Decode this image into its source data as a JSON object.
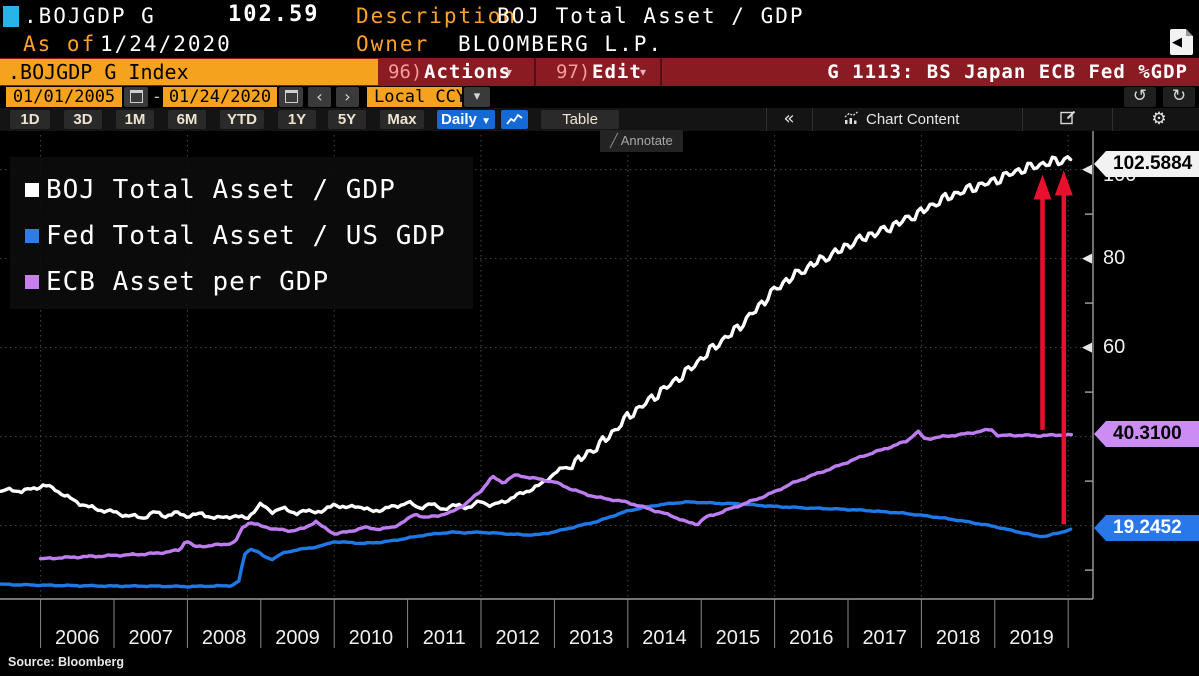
{
  "header": {
    "ticker": ".BOJGDP G",
    "last_price": "102.59",
    "description_label": "Description",
    "description_value": "BOJ Total Asset / GDP",
    "as_of_label": "As of",
    "as_of_date": "1/24/2020",
    "owner_label": "Owner",
    "owner_value": "BLOOMBERG L.P."
  },
  "command_bar": {
    "security_field": ".BOJGDP G Index",
    "actions_num": "96)",
    "actions_label": "Actions",
    "edit_num": "97)",
    "edit_label": "Edit",
    "dropdown_caret": "▾",
    "chart_title": "G 1113: BS Japan ECB Fed %GDP"
  },
  "date_bar": {
    "start_date": "01/01/2005",
    "end_date": "01/24/2020",
    "range_separator": "-",
    "currency": "Local CCY",
    "prev_label": "‹",
    "next_label": "›",
    "undo_label": "↺",
    "redo_label": "↻"
  },
  "toolbar": {
    "ranges": [
      "1D",
      "3D",
      "1M",
      "6M",
      "YTD",
      "1Y",
      "5Y",
      "Max"
    ],
    "frequency": "Daily",
    "frequency_caret": "▼",
    "table_label": "Table",
    "collapse_label": "«",
    "chart_content_label": "Chart Content",
    "gear_icon": "⚙",
    "annotate_label": "Annotate",
    "annotate_glyph": "╱"
  },
  "legend": {
    "items": [
      {
        "label": "BOJ Total Asset / GDP",
        "color": "#ffffff"
      },
      {
        "label": "Fed Total Asset / US GDP",
        "color": "#2e7ce4"
      },
      {
        "label": "ECB Asset per GDP",
        "color": "#c77ff0"
      }
    ]
  },
  "badges": [
    {
      "id": "boj",
      "value": "102.5884"
    },
    {
      "id": "ecb",
      "value": "40.3100"
    },
    {
      "id": "fed",
      "value": "19.2452"
    }
  ],
  "source": "Source: Bloomberg",
  "chart_data": {
    "type": "line",
    "title": "G 1113: BS Japan ECB Fed %GDP",
    "x_axis": {
      "start": 2005.45,
      "end": 2020.45,
      "year_labels": [
        2006,
        2007,
        2008,
        2009,
        2010,
        2011,
        2012,
        2013,
        2014,
        2015,
        2016,
        2017,
        2018,
        2019
      ],
      "tick_years": [
        2006,
        2007,
        2008,
        2009,
        2010,
        2011,
        2012,
        2013,
        2014,
        2015,
        2016,
        2017,
        2018,
        2019,
        2020
      ],
      "gridline_years": [
        2006,
        2008,
        2010,
        2012,
        2014,
        2016,
        2018,
        2020
      ]
    },
    "y_axis": {
      "unit": "% of GDP",
      "major": [
        20,
        40,
        60,
        80,
        100
      ],
      "labeled": [
        60,
        80,
        100
      ],
      "minor": [
        10,
        30,
        50,
        70,
        90
      ],
      "range": [
        3,
        106
      ]
    },
    "grid": true,
    "legend_position": "top-left",
    "series": [
      {
        "name": "Fed Total Asset / US GDP",
        "color": "#1e78e6",
        "last_value": 19.2452,
        "points": [
          [
            2005.45,
            6.8
          ],
          [
            2006.0,
            6.6
          ],
          [
            2006.5,
            6.5
          ],
          [
            2007.0,
            6.4
          ],
          [
            2007.5,
            6.4
          ],
          [
            2008.0,
            6.3
          ],
          [
            2008.3,
            6.4
          ],
          [
            2008.6,
            6.5
          ],
          [
            2008.7,
            7.5
          ],
          [
            2008.78,
            13.5
          ],
          [
            2008.85,
            14.8
          ],
          [
            2008.95,
            14.2
          ],
          [
            2009.05,
            13.0
          ],
          [
            2009.15,
            12.4
          ],
          [
            2009.3,
            13.8
          ],
          [
            2009.5,
            14.6
          ],
          [
            2009.7,
            15.0
          ],
          [
            2009.9,
            15.8
          ],
          [
            2010.0,
            16.4
          ],
          [
            2010.2,
            16.2
          ],
          [
            2010.4,
            16.0
          ],
          [
            2010.6,
            16.2
          ],
          [
            2010.8,
            16.6
          ],
          [
            2011.0,
            17.2
          ],
          [
            2011.2,
            17.8
          ],
          [
            2011.4,
            18.2
          ],
          [
            2011.6,
            18.5
          ],
          [
            2011.8,
            18.4
          ],
          [
            2012.0,
            18.5
          ],
          [
            2012.2,
            18.3
          ],
          [
            2012.4,
            18.1
          ],
          [
            2012.6,
            17.9
          ],
          [
            2012.8,
            18.0
          ],
          [
            2013.0,
            18.6
          ],
          [
            2013.2,
            19.4
          ],
          [
            2013.4,
            20.2
          ],
          [
            2013.6,
            21.0
          ],
          [
            2013.8,
            22.2
          ],
          [
            2014.0,
            23.3
          ],
          [
            2014.2,
            24.0
          ],
          [
            2014.4,
            24.6
          ],
          [
            2014.6,
            25.0
          ],
          [
            2014.8,
            25.3
          ],
          [
            2015.0,
            25.2
          ],
          [
            2015.25,
            25.0
          ],
          [
            2015.5,
            24.9
          ],
          [
            2015.75,
            24.6
          ],
          [
            2016.0,
            24.3
          ],
          [
            2016.25,
            24.1
          ],
          [
            2016.5,
            23.9
          ],
          [
            2016.75,
            23.8
          ],
          [
            2017.0,
            23.6
          ],
          [
            2017.25,
            23.4
          ],
          [
            2017.5,
            23.1
          ],
          [
            2017.75,
            22.8
          ],
          [
            2018.0,
            22.3
          ],
          [
            2018.25,
            21.8
          ],
          [
            2018.5,
            21.2
          ],
          [
            2018.75,
            20.5
          ],
          [
            2019.0,
            19.8
          ],
          [
            2019.2,
            19.0
          ],
          [
            2019.4,
            18.3
          ],
          [
            2019.55,
            17.7
          ],
          [
            2019.7,
            17.6
          ],
          [
            2019.85,
            18.3
          ],
          [
            2020.07,
            19.2452
          ]
        ]
      },
      {
        "name": "BOJ Total Asset / GDP",
        "color": "#ffffff",
        "last_value": 102.5884,
        "points": [
          [
            2005.45,
            27.5
          ],
          [
            2005.6,
            28.2
          ],
          [
            2005.75,
            27.6
          ],
          [
            2005.9,
            28.4
          ],
          [
            2006.05,
            29.0
          ],
          [
            2006.2,
            28.2
          ],
          [
            2006.35,
            26.5
          ],
          [
            2006.5,
            25.3
          ],
          [
            2006.65,
            24.2
          ],
          [
            2006.8,
            23.6
          ],
          [
            2007.0,
            23.0
          ],
          [
            2007.2,
            22.2
          ],
          [
            2007.4,
            21.8
          ],
          [
            2007.55,
            23.0
          ],
          [
            2007.7,
            22.2
          ],
          [
            2007.85,
            22.8
          ],
          [
            2008.0,
            22.2
          ],
          [
            2008.2,
            22.6
          ],
          [
            2008.4,
            21.6
          ],
          [
            2008.6,
            22.2
          ],
          [
            2008.8,
            21.6
          ],
          [
            2009.0,
            24.7
          ],
          [
            2009.15,
            23.2
          ],
          [
            2009.3,
            23.8
          ],
          [
            2009.5,
            22.8
          ],
          [
            2009.7,
            23.4
          ],
          [
            2009.85,
            23.0
          ],
          [
            2010.0,
            25.0
          ],
          [
            2010.15,
            23.8
          ],
          [
            2010.3,
            24.6
          ],
          [
            2010.5,
            23.2
          ],
          [
            2010.7,
            23.8
          ],
          [
            2010.85,
            24.4
          ],
          [
            2011.0,
            25.2
          ],
          [
            2011.15,
            24.0
          ],
          [
            2011.3,
            24.8
          ],
          [
            2011.5,
            23.8
          ],
          [
            2011.7,
            24.6
          ],
          [
            2011.85,
            24.0
          ],
          [
            2012.0,
            25.6
          ],
          [
            2012.15,
            24.4
          ],
          [
            2012.3,
            25.4
          ],
          [
            2012.45,
            26.4
          ],
          [
            2012.6,
            27.6
          ],
          [
            2012.8,
            29.0
          ],
          [
            2013.0,
            31.8
          ],
          [
            2013.2,
            33.5
          ],
          [
            2013.4,
            35.5
          ],
          [
            2013.6,
            38.0
          ],
          [
            2013.8,
            41.0
          ],
          [
            2014.0,
            44.5
          ],
          [
            2014.2,
            47.0
          ],
          [
            2014.4,
            49.5
          ],
          [
            2014.6,
            52.0
          ],
          [
            2014.8,
            54.5
          ],
          [
            2015.0,
            57.5
          ],
          [
            2015.2,
            60.5
          ],
          [
            2015.4,
            63.0
          ],
          [
            2015.6,
            66.0
          ],
          [
            2015.8,
            69.5
          ],
          [
            2016.0,
            73.0
          ],
          [
            2016.2,
            75.5
          ],
          [
            2016.4,
            77.5
          ],
          [
            2016.6,
            79.5
          ],
          [
            2016.8,
            81.0
          ],
          [
            2017.0,
            83.0
          ],
          [
            2017.25,
            85.0
          ],
          [
            2017.5,
            86.5
          ],
          [
            2017.75,
            88.5
          ],
          [
            2018.0,
            90.5
          ],
          [
            2018.25,
            93.0
          ],
          [
            2018.5,
            94.8
          ],
          [
            2018.75,
            96.2
          ],
          [
            2019.0,
            97.5
          ],
          [
            2019.2,
            99.0
          ],
          [
            2019.4,
            100.2
          ],
          [
            2019.6,
            101.0
          ],
          [
            2019.8,
            101.8
          ],
          [
            2019.95,
            102.2
          ],
          [
            2020.07,
            102.59
          ]
        ]
      },
      {
        "name": "ECB Asset per GDP",
        "color": "#bd7df0",
        "last_value": 40.31,
        "points": [
          [
            2006.0,
            12.5
          ],
          [
            2006.3,
            12.8
          ],
          [
            2006.6,
            13.0
          ],
          [
            2006.9,
            13.2
          ],
          [
            2007.0,
            13.3
          ],
          [
            2007.3,
            13.5
          ],
          [
            2007.6,
            13.8
          ],
          [
            2007.9,
            14.5
          ],
          [
            2007.98,
            16.8
          ],
          [
            2008.1,
            15.2
          ],
          [
            2008.3,
            15.5
          ],
          [
            2008.5,
            15.8
          ],
          [
            2008.65,
            16.2
          ],
          [
            2008.75,
            19.5
          ],
          [
            2008.85,
            20.8
          ],
          [
            2009.0,
            19.9
          ],
          [
            2009.2,
            19.2
          ],
          [
            2009.4,
            18.8
          ],
          [
            2009.6,
            19.4
          ],
          [
            2009.75,
            21.0
          ],
          [
            2009.85,
            19.6
          ],
          [
            2010.0,
            18.2
          ],
          [
            2010.2,
            18.6
          ],
          [
            2010.4,
            19.6
          ],
          [
            2010.6,
            19.2
          ],
          [
            2010.8,
            19.6
          ],
          [
            2011.0,
            21.4
          ],
          [
            2011.1,
            22.6
          ],
          [
            2011.25,
            21.8
          ],
          [
            2011.4,
            22.2
          ],
          [
            2011.6,
            23.0
          ],
          [
            2011.8,
            25.0
          ],
          [
            2012.0,
            27.8
          ],
          [
            2012.15,
            31.0
          ],
          [
            2012.3,
            29.6
          ],
          [
            2012.45,
            31.3
          ],
          [
            2012.6,
            31.0
          ],
          [
            2012.8,
            30.4
          ],
          [
            2013.0,
            29.8
          ],
          [
            2013.2,
            28.4
          ],
          [
            2013.4,
            27.2
          ],
          [
            2013.6,
            26.3
          ],
          [
            2013.8,
            25.8
          ],
          [
            2014.0,
            25.2
          ],
          [
            2014.2,
            24.2
          ],
          [
            2014.4,
            23.2
          ],
          [
            2014.6,
            22.2
          ],
          [
            2014.8,
            20.8
          ],
          [
            2014.95,
            20.3
          ],
          [
            2015.05,
            21.8
          ],
          [
            2015.2,
            22.6
          ],
          [
            2015.4,
            23.8
          ],
          [
            2015.6,
            25.0
          ],
          [
            2015.8,
            26.2
          ],
          [
            2016.0,
            27.6
          ],
          [
            2016.2,
            29.2
          ],
          [
            2016.4,
            30.6
          ],
          [
            2016.6,
            31.8
          ],
          [
            2016.8,
            33.0
          ],
          [
            2017.0,
            34.3
          ],
          [
            2017.2,
            35.6
          ],
          [
            2017.4,
            36.7
          ],
          [
            2017.6,
            37.8
          ],
          [
            2017.8,
            39.0
          ],
          [
            2017.95,
            41.2
          ],
          [
            2018.05,
            39.4
          ],
          [
            2018.2,
            39.8
          ],
          [
            2018.4,
            40.2
          ],
          [
            2018.6,
            40.6
          ],
          [
            2018.8,
            41.2
          ],
          [
            2018.95,
            41.6
          ],
          [
            2019.05,
            40.2
          ],
          [
            2019.3,
            40.3
          ],
          [
            2019.6,
            40.2
          ],
          [
            2019.9,
            40.4
          ],
          [
            2020.07,
            40.31
          ]
        ]
      }
    ],
    "annotations": [
      {
        "type": "arrow",
        "color": "#e8112d",
        "t": 2019.65,
        "v_from": 41.5,
        "v_to": 98.9
      },
      {
        "type": "arrow",
        "color": "#e8112d",
        "t": 2019.94,
        "v_from": 20.3,
        "v_to": 99.8
      }
    ]
  }
}
